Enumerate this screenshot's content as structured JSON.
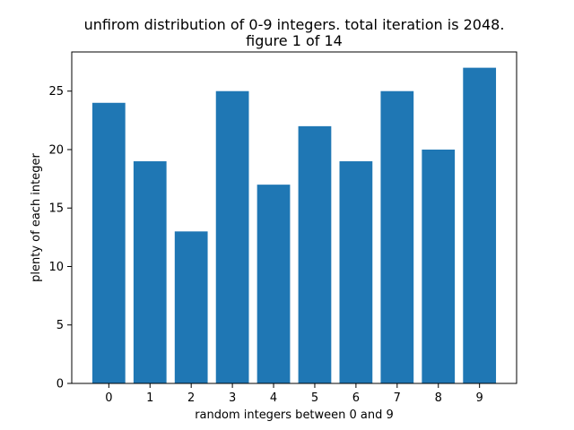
{
  "chart_data": {
    "type": "bar",
    "title_line1": "unfirom distribution of 0-9 integers. total iteration is 2048.",
    "title_line2": "figure 1 of 14",
    "xlabel": "random integers between 0 and 9",
    "ylabel": "plenty of each integer",
    "categories": [
      "0",
      "1",
      "2",
      "3",
      "4",
      "5",
      "6",
      "7",
      "8",
      "9"
    ],
    "values": [
      24,
      19,
      13,
      25,
      17,
      22,
      19,
      25,
      20,
      27
    ],
    "ylim": [
      0,
      28.35
    ],
    "yticks": [
      0,
      5,
      10,
      15,
      20,
      25
    ],
    "grid": false,
    "bar_color": "#1f77b4",
    "axis_color": "#000000"
  }
}
